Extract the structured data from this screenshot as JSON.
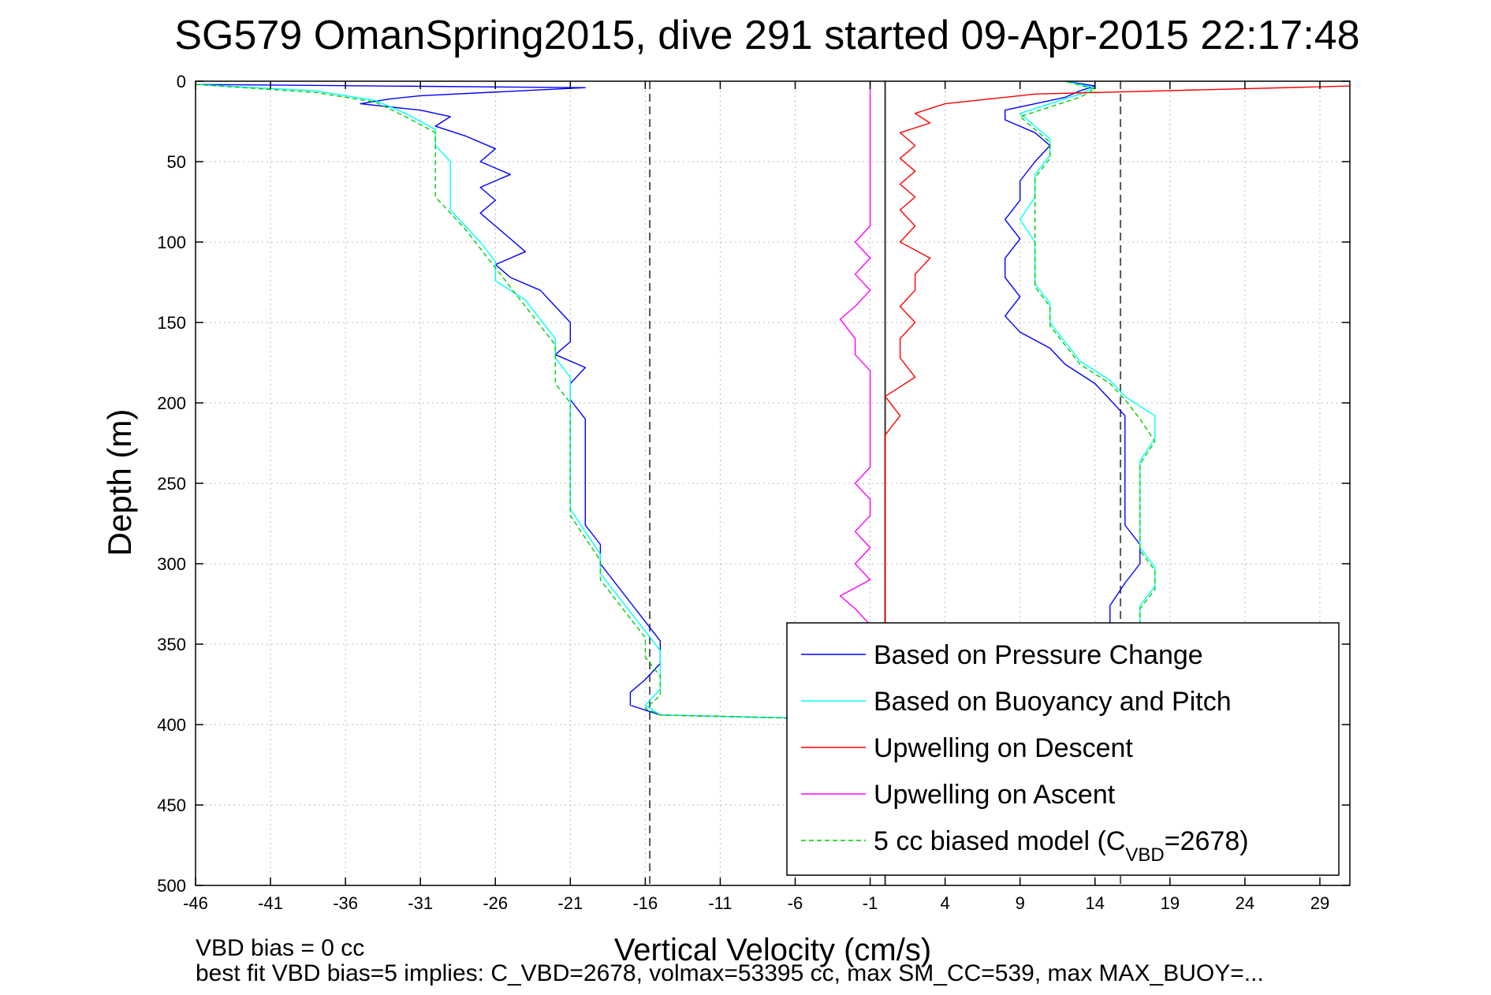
{
  "chart_data": {
    "type": "line",
    "title": "SG579 OmanSpring2015, dive 291 started 09-Apr-2015 22:17:48",
    "xlabel": "Vertical Velocity (cm/s)",
    "ylabel": "Depth (m)",
    "xlim": [
      -46,
      31
    ],
    "ylim": [
      500,
      0
    ],
    "y_reversed": true,
    "grid": true,
    "x_ticks": [
      -46,
      -41,
      -36,
      -31,
      -26,
      -21,
      -16,
      -11,
      -6,
      -1,
      4,
      9,
      14,
      19,
      24,
      29
    ],
    "y_ticks": [
      0,
      50,
      100,
      150,
      200,
      250,
      300,
      350,
      400,
      450,
      500
    ],
    "vertical_lines": [
      {
        "x": -15.7,
        "style": "dashed",
        "color": "#555555"
      },
      {
        "x": 0,
        "style": "solid",
        "color": "#333333"
      },
      {
        "x": 15.7,
        "style": "dashed",
        "color": "#555555"
      }
    ],
    "legend_position": "bottom-right",
    "series": [
      {
        "name": "Based on Pressure Change",
        "color": "#0000ff",
        "dash": "",
        "descent": [
          [
            -46,
            2
          ],
          [
            -20,
            4
          ],
          [
            -31,
            9
          ],
          [
            -33,
            11
          ],
          [
            -35,
            14
          ],
          [
            -31,
            18
          ],
          [
            -29,
            22
          ],
          [
            -30,
            28
          ],
          [
            -28,
            34
          ],
          [
            -26,
            42
          ],
          [
            -27,
            50
          ],
          [
            -25,
            58
          ],
          [
            -27,
            66
          ],
          [
            -26,
            74
          ],
          [
            -27,
            82
          ],
          [
            -26,
            90
          ],
          [
            -25,
            98
          ],
          [
            -24,
            106
          ],
          [
            -26,
            114
          ],
          [
            -25,
            122
          ],
          [
            -23,
            130
          ],
          [
            -22,
            140
          ],
          [
            -21,
            150
          ],
          [
            -21,
            162
          ],
          [
            -22,
            170
          ],
          [
            -20,
            178
          ],
          [
            -21,
            188
          ],
          [
            -21,
            198
          ],
          [
            -20,
            210
          ],
          [
            -20,
            222
          ],
          [
            -20,
            236
          ],
          [
            -20,
            250
          ],
          [
            -20,
            262
          ],
          [
            -20,
            276
          ],
          [
            -19,
            288
          ],
          [
            -19,
            300
          ],
          [
            -18,
            312
          ],
          [
            -17,
            324
          ],
          [
            -16,
            336
          ],
          [
            -15,
            348
          ],
          [
            -15,
            362
          ],
          [
            -16,
            372
          ],
          [
            -17,
            380
          ],
          [
            -17,
            388
          ],
          [
            -15,
            394
          ],
          [
            -6,
            396
          ]
        ],
        "ascent": [
          [
            -6,
            396
          ],
          [
            16,
            350
          ],
          [
            15,
            338
          ],
          [
            15,
            326
          ],
          [
            16,
            312
          ],
          [
            17,
            300
          ],
          [
            17,
            288
          ],
          [
            16,
            276
          ],
          [
            16,
            262
          ],
          [
            16,
            250
          ],
          [
            16,
            236
          ],
          [
            16,
            222
          ],
          [
            16,
            208
          ],
          [
            15,
            198
          ],
          [
            14,
            188
          ],
          [
            12,
            176
          ],
          [
            11,
            166
          ],
          [
            9,
            156
          ],
          [
            8,
            146
          ],
          [
            9,
            134
          ],
          [
            8,
            122
          ],
          [
            8,
            110
          ],
          [
            9,
            98
          ],
          [
            8,
            86
          ],
          [
            9,
            74
          ],
          [
            9,
            62
          ],
          [
            10,
            50
          ],
          [
            11,
            40
          ],
          [
            10,
            32
          ],
          [
            8,
            24
          ],
          [
            8,
            18
          ],
          [
            10,
            14
          ],
          [
            12,
            10
          ],
          [
            13,
            6
          ],
          [
            14,
            3
          ],
          [
            12,
            0
          ]
        ]
      },
      {
        "name": "Based on Buoyancy and Pitch",
        "color": "#00ffff",
        "dash": "",
        "descent": [
          [
            -46,
            2
          ],
          [
            -38,
            6
          ],
          [
            -34,
            12
          ],
          [
            -32,
            20
          ],
          [
            -30,
            30
          ],
          [
            -30,
            40
          ],
          [
            -29,
            50
          ],
          [
            -29,
            60
          ],
          [
            -29,
            70
          ],
          [
            -29,
            80
          ],
          [
            -28,
            90
          ],
          [
            -27,
            100
          ],
          [
            -26,
            112
          ],
          [
            -26,
            124
          ],
          [
            -24,
            136
          ],
          [
            -23,
            148
          ],
          [
            -22,
            160
          ],
          [
            -22,
            172
          ],
          [
            -21,
            184
          ],
          [
            -21,
            196
          ],
          [
            -21,
            210
          ],
          [
            -21,
            224
          ],
          [
            -21,
            238
          ],
          [
            -21,
            252
          ],
          [
            -21,
            266
          ],
          [
            -20,
            280
          ],
          [
            -19,
            294
          ],
          [
            -19,
            306
          ],
          [
            -18,
            318
          ],
          [
            -17,
            330
          ],
          [
            -16,
            342
          ],
          [
            -15,
            354
          ],
          [
            -15,
            366
          ],
          [
            -15,
            378
          ],
          [
            -16,
            388
          ],
          [
            -15,
            394
          ],
          [
            -6,
            396
          ]
        ],
        "ascent": [
          [
            -6,
            396
          ],
          [
            16,
            350
          ],
          [
            17,
            338
          ],
          [
            17,
            326
          ],
          [
            18,
            314
          ],
          [
            18,
            302
          ],
          [
            17,
            290
          ],
          [
            17,
            278
          ],
          [
            17,
            264
          ],
          [
            17,
            250
          ],
          [
            17,
            236
          ],
          [
            18,
            222
          ],
          [
            18,
            208
          ],
          [
            16,
            196
          ],
          [
            15,
            186
          ],
          [
            13,
            174
          ],
          [
            12,
            162
          ],
          [
            11,
            150
          ],
          [
            11,
            138
          ],
          [
            10,
            126
          ],
          [
            10,
            114
          ],
          [
            10,
            100
          ],
          [
            9,
            86
          ],
          [
            10,
            72
          ],
          [
            10,
            58
          ],
          [
            11,
            46
          ],
          [
            11,
            36
          ],
          [
            10,
            28
          ],
          [
            9,
            20
          ],
          [
            11,
            14
          ],
          [
            13,
            8
          ],
          [
            14,
            4
          ],
          [
            12,
            0
          ]
        ]
      },
      {
        "name": "Upwelling on Descent",
        "color": "#ff0000",
        "dash": "",
        "descent": [
          [
            31,
            3
          ],
          [
            10,
            8
          ],
          [
            4,
            14
          ],
          [
            2,
            20
          ],
          [
            3,
            26
          ],
          [
            1,
            32
          ],
          [
            2,
            40
          ],
          [
            1,
            48
          ],
          [
            2,
            56
          ],
          [
            1,
            64
          ],
          [
            2,
            72
          ],
          [
            1,
            80
          ],
          [
            2,
            90
          ],
          [
            1,
            100
          ],
          [
            3,
            110
          ],
          [
            2,
            120
          ],
          [
            2,
            130
          ],
          [
            1,
            140
          ],
          [
            2,
            150
          ],
          [
            1,
            160
          ],
          [
            1,
            172
          ],
          [
            2,
            184
          ],
          [
            0,
            196
          ],
          [
            1,
            208
          ],
          [
            0,
            220
          ],
          [
            0,
            232
          ],
          [
            0,
            244
          ],
          [
            0,
            256
          ],
          [
            0,
            268
          ],
          [
            0,
            280
          ],
          [
            0,
            292
          ],
          [
            0,
            304
          ],
          [
            0,
            316
          ],
          [
            0,
            328
          ],
          [
            0,
            338
          ]
        ]
      },
      {
        "name": "Upwelling on Ascent",
        "color": "#ff00ff",
        "dash": "",
        "ascent": [
          [
            -1,
            338
          ],
          [
            -2,
            328
          ],
          [
            -3,
            320
          ],
          [
            -1,
            310
          ],
          [
            -2,
            300
          ],
          [
            -1,
            290
          ],
          [
            -2,
            280
          ],
          [
            -1,
            270
          ],
          [
            -1,
            260
          ],
          [
            -2,
            250
          ],
          [
            -1,
            240
          ],
          [
            -1,
            230
          ],
          [
            -1,
            220
          ],
          [
            -1,
            210
          ],
          [
            -1,
            200
          ],
          [
            -1,
            190
          ],
          [
            -1,
            180
          ],
          [
            -2,
            170
          ],
          [
            -2,
            160
          ],
          [
            -3,
            148
          ],
          [
            -2,
            140
          ],
          [
            -1,
            130
          ],
          [
            -2,
            120
          ],
          [
            -1,
            110
          ],
          [
            -2,
            100
          ],
          [
            -1,
            90
          ],
          [
            -1,
            80
          ],
          [
            -1,
            70
          ],
          [
            -1,
            60
          ],
          [
            -1,
            50
          ],
          [
            -1,
            40
          ],
          [
            -1,
            30
          ],
          [
            -1,
            20
          ],
          [
            -1,
            10
          ],
          [
            -1,
            0
          ]
        ]
      },
      {
        "name": "5 cc biased model (C",
        "name_sub": "VBD",
        "name_suffix": "=2678)",
        "color": "#00cc00",
        "dash": "6,4",
        "descent": [
          [
            -46,
            2
          ],
          [
            -38,
            7
          ],
          [
            -34,
            13
          ],
          [
            -32,
            22
          ],
          [
            -30,
            32
          ],
          [
            -30,
            42
          ],
          [
            -30,
            52
          ],
          [
            -30,
            62
          ],
          [
            -30,
            72
          ],
          [
            -29,
            82
          ],
          [
            -28,
            92
          ],
          [
            -27,
            104
          ],
          [
            -26,
            116
          ],
          [
            -25,
            128
          ],
          [
            -24,
            140
          ],
          [
            -23,
            152
          ],
          [
            -22,
            164
          ],
          [
            -22,
            176
          ],
          [
            -22,
            188
          ],
          [
            -21,
            200
          ],
          [
            -21,
            214
          ],
          [
            -21,
            228
          ],
          [
            -21,
            242
          ],
          [
            -21,
            256
          ],
          [
            -21,
            270
          ],
          [
            -20,
            284
          ],
          [
            -19,
            298
          ],
          [
            -19,
            310
          ],
          [
            -18,
            322
          ],
          [
            -17,
            334
          ],
          [
            -16,
            346
          ],
          [
            -16,
            358
          ],
          [
            -15,
            370
          ],
          [
            -15,
            382
          ],
          [
            -16,
            390
          ],
          [
            -15,
            394
          ],
          [
            -6,
            396
          ]
        ],
        "ascent": [
          [
            -6,
            396
          ],
          [
            16,
            350
          ],
          [
            17,
            340
          ],
          [
            17,
            328
          ],
          [
            18,
            316
          ],
          [
            18,
            304
          ],
          [
            17,
            292
          ],
          [
            17,
            280
          ],
          [
            17,
            266
          ],
          [
            17,
            252
          ],
          [
            17,
            238
          ],
          [
            18,
            224
          ],
          [
            17,
            210
          ],
          [
            16,
            198
          ],
          [
            15,
            188
          ],
          [
            13,
            176
          ],
          [
            12,
            164
          ],
          [
            11,
            152
          ],
          [
            11,
            140
          ],
          [
            10,
            128
          ],
          [
            10,
            116
          ],
          [
            10,
            102
          ],
          [
            10,
            88
          ],
          [
            10,
            74
          ],
          [
            10,
            60
          ],
          [
            11,
            48
          ],
          [
            11,
            38
          ],
          [
            10,
            30
          ],
          [
            9,
            22
          ],
          [
            11,
            16
          ],
          [
            13,
            10
          ],
          [
            14,
            5
          ],
          [
            12,
            0
          ]
        ]
      }
    ]
  },
  "footer": {
    "line1": "VBD bias = 0 cc",
    "line2": "best fit VBD bias=5 implies: C_VBD=2678, volmax=53395 cc, max SM_CC=539, max MAX_BUOY=..."
  }
}
